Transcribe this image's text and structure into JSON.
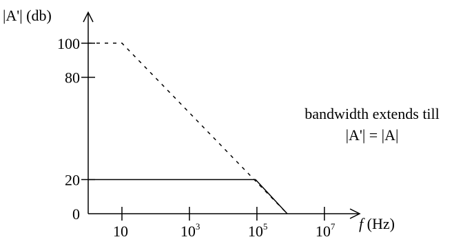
{
  "chart_data": {
    "type": "line",
    "title": "",
    "ylabel": "|A'| (db)",
    "xlabel": {
      "italic": "f",
      "rest": " (Hz)"
    },
    "x_scale": "log",
    "xlim_log10": [
      0,
      7.8
    ],
    "ylim": [
      0,
      110
    ],
    "y_ticks": [
      {
        "value": 0,
        "label": "0"
      },
      {
        "value": 20,
        "label": "20"
      },
      {
        "value": 80,
        "label": "80"
      },
      {
        "value": 100,
        "label": "100"
      }
    ],
    "x_ticks": [
      {
        "log10": 1,
        "base": "10",
        "exp": ""
      },
      {
        "log10": 3,
        "base": "10",
        "exp": "3"
      },
      {
        "log10": 5,
        "base": "10",
        "exp": "5"
      },
      {
        "log10": 7,
        "base": "10",
        "exp": "7"
      }
    ],
    "series": [
      {
        "style": "dashed",
        "points_log10": [
          [
            0,
            100
          ],
          [
            1,
            100
          ],
          [
            5.9,
            0
          ]
        ]
      },
      {
        "style": "solid",
        "points_log10": [
          [
            0,
            20
          ],
          [
            4.96,
            20
          ],
          [
            5.9,
            0
          ]
        ]
      }
    ],
    "annotation": {
      "line1": "bandwidth extends till",
      "line2": "|A'| = |A|"
    },
    "grid": false
  }
}
